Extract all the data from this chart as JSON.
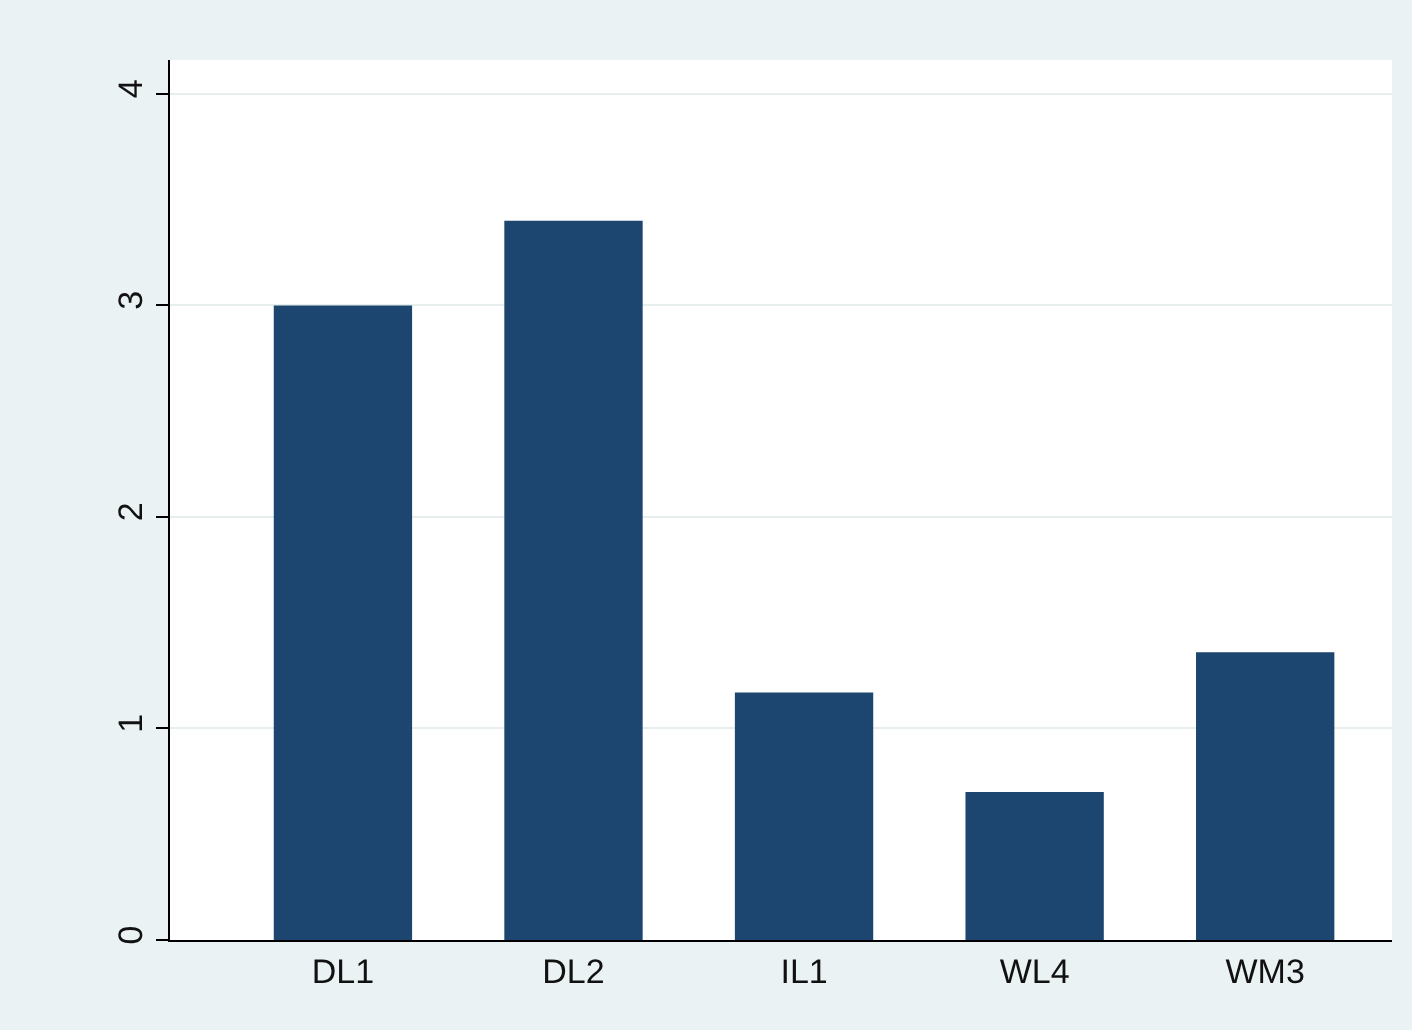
{
  "chart_data": {
    "type": "bar",
    "categories": [
      "DL1",
      "DL2",
      "IL1",
      "WL4",
      "WM3"
    ],
    "values": [
      3.0,
      3.4,
      1.17,
      0.7,
      1.36
    ],
    "color": "#1c466f",
    "ylim": [
      0,
      4.16
    ],
    "yticks": [
      0,
      1,
      2,
      3,
      4
    ],
    "grid": "y"
  }
}
